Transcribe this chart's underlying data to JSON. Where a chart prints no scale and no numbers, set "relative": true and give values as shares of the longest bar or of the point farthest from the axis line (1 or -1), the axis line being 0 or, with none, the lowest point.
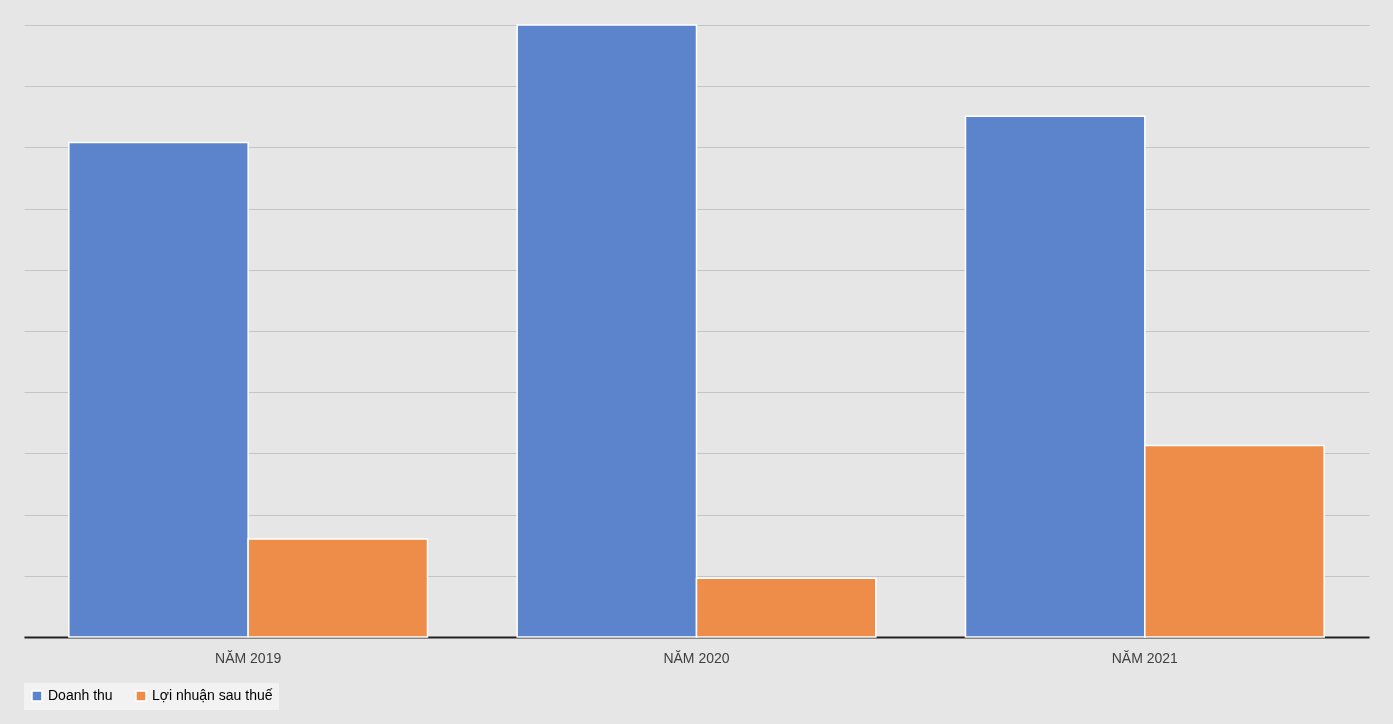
{
  "chart_data": {
    "type": "bar",
    "relative": true,
    "categories": [
      "NĂM 2019",
      "NĂM 2020",
      "NĂM 2021"
    ],
    "series": [
      {
        "name": "Doanh thu",
        "color": "#5b84cc",
        "values": [
          0.808,
          1,
          0.851
        ]
      },
      {
        "name": "Lợi nhuận sau thuế",
        "color": "#ee8c4a",
        "values": [
          0.16,
          0.096,
          0.313
        ]
      }
    ],
    "grid": "y",
    "legend": "bottom"
  }
}
